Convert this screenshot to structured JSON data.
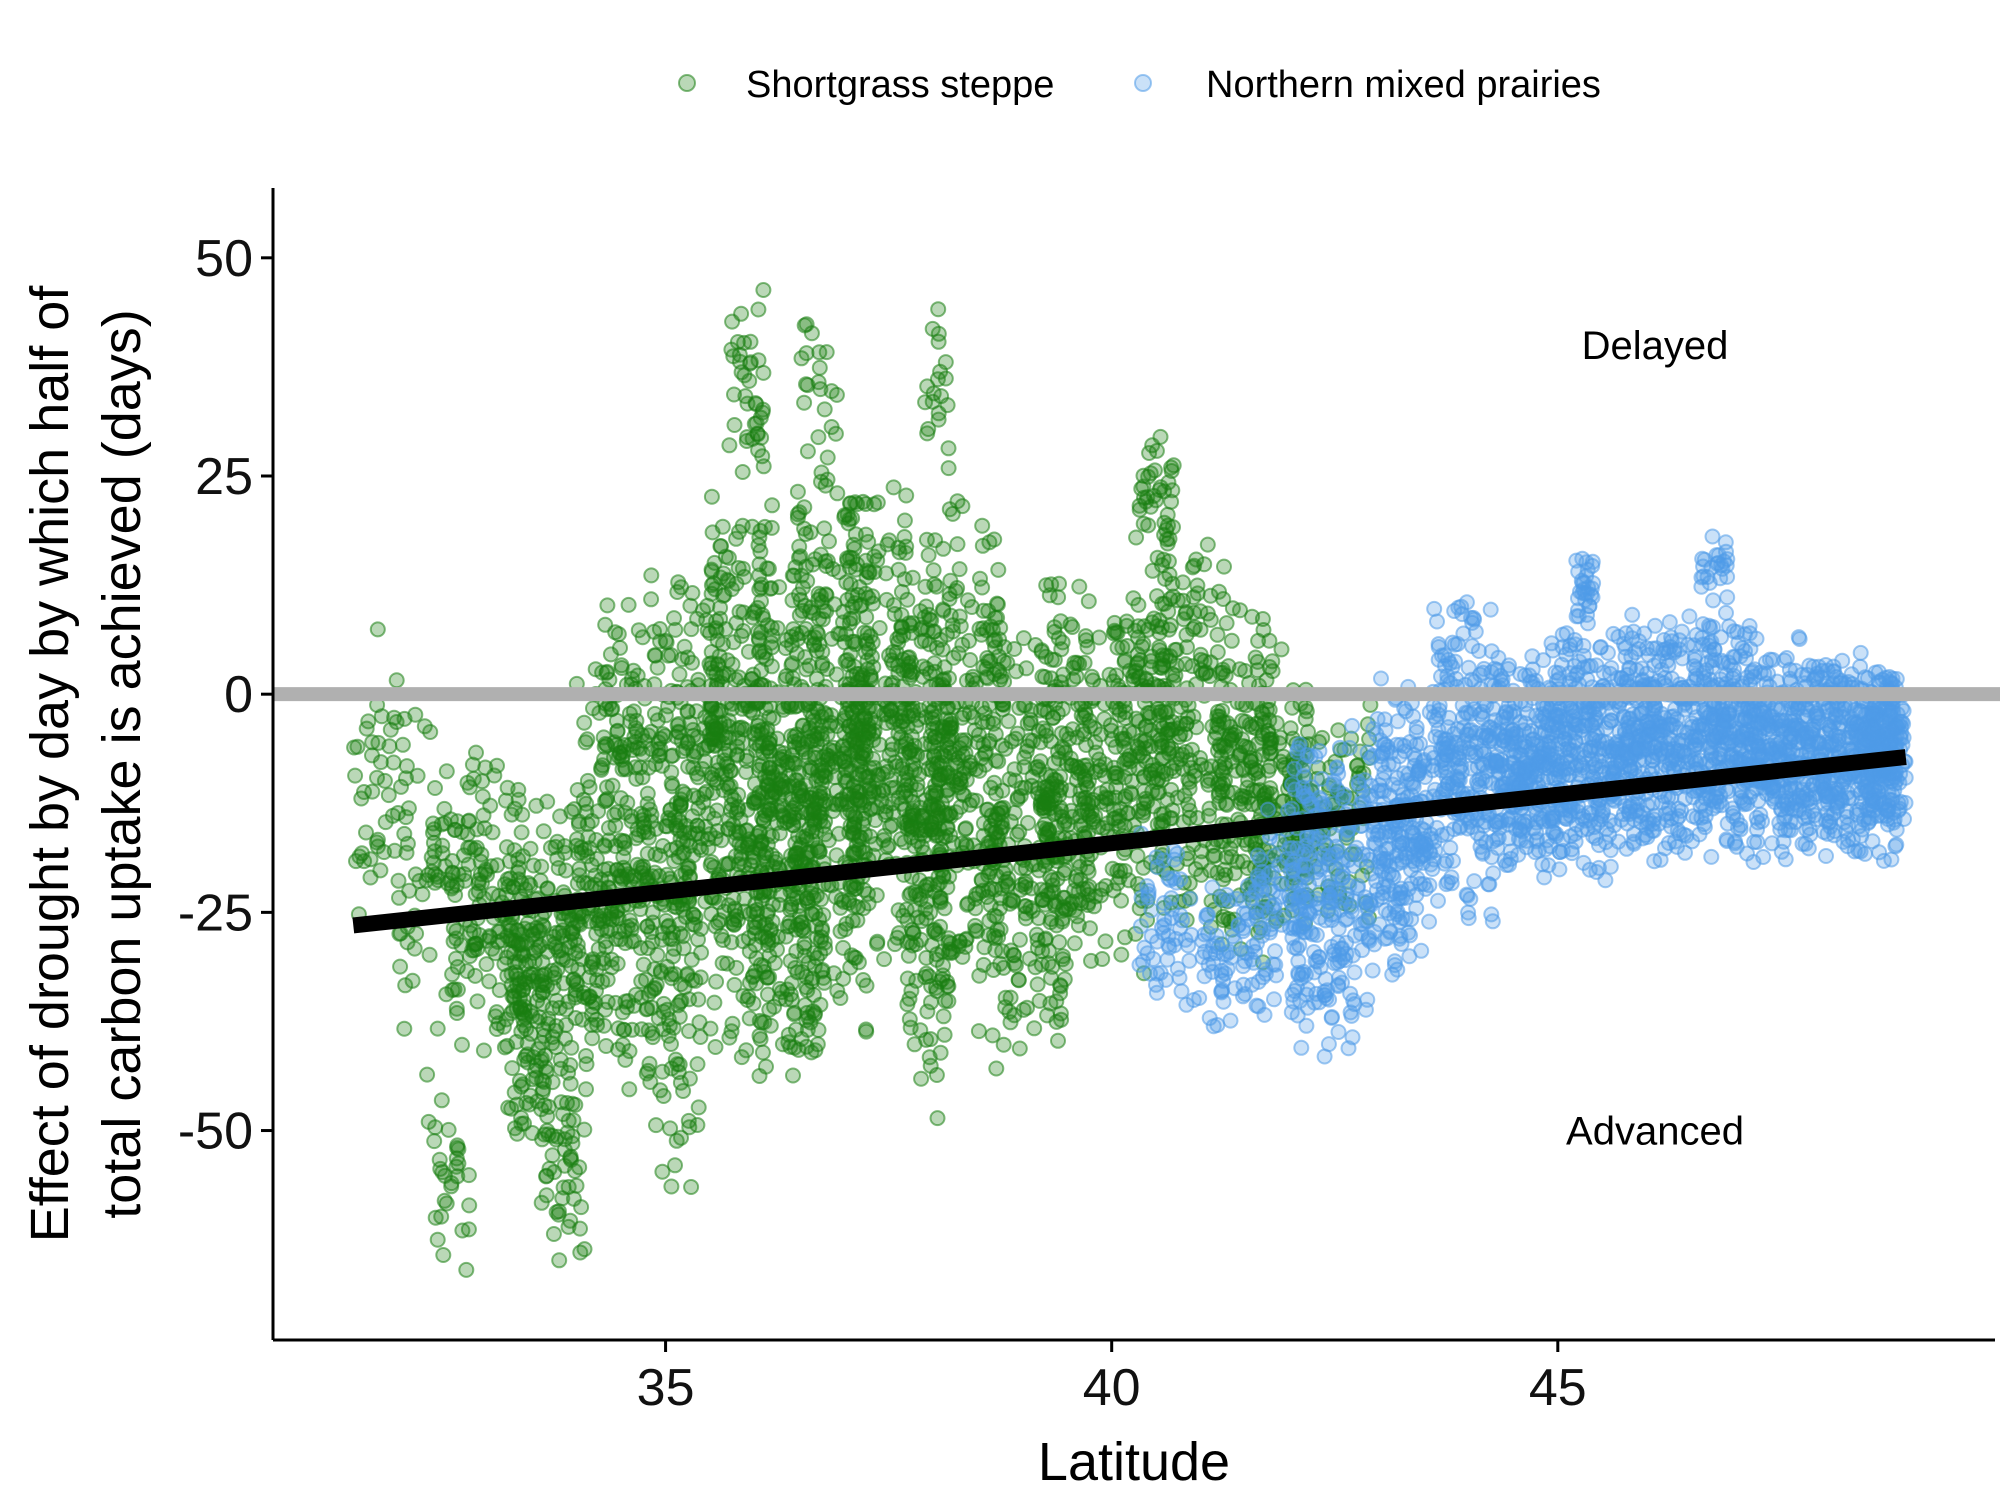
{
  "chart_data": {
    "type": "scatter",
    "xlabel": "Latitude",
    "ylabel": [
      "Effect of drought by day by which half of",
      "total carbon uptake is achieved (days)"
    ],
    "xlim": [
      30.6,
      49.9
    ],
    "ylim": [
      -74,
      58
    ],
    "xticks": [
      35,
      40,
      45
    ],
    "yticks": [
      50,
      25,
      0,
      -25,
      -50
    ],
    "grid": false,
    "legend_position": "top",
    "reference_line": {
      "y": 0,
      "color": "#b0b0b0"
    },
    "regression_line": {
      "x": [
        31.5,
        48.9
      ],
      "y": [
        -26.5,
        -7.2
      ],
      "color": "#000000"
    },
    "annotations": [
      {
        "text": "Delayed",
        "x": 46.0,
        "y": 40
      },
      {
        "text": "Advanced",
        "x": 46.0,
        "y": -50
      }
    ],
    "series": [
      {
        "name": "Shortgrass steppe",
        "color": "#1a7f12",
        "bands": [
          [
            31.5,
            32.0,
            -30,
            8,
            40
          ],
          [
            32.0,
            32.6,
            -40,
            0,
            60
          ],
          [
            32.3,
            32.8,
            -68,
            -40,
            30
          ],
          [
            32.6,
            33.4,
            -45,
            -5,
            150
          ],
          [
            33.2,
            34.0,
            -55,
            -10,
            250
          ],
          [
            33.6,
            34.1,
            -67,
            -45,
            40
          ],
          [
            34.0,
            34.8,
            -50,
            5,
            250
          ],
          [
            34.3,
            35.0,
            -20,
            16,
            80
          ],
          [
            34.8,
            35.4,
            -58,
            0,
            150
          ],
          [
            35.0,
            35.6,
            -30,
            15,
            150
          ],
          [
            35.5,
            36.2,
            -45,
            25,
            350
          ],
          [
            35.7,
            36.1,
            20,
            52,
            40
          ],
          [
            36.0,
            36.8,
            -48,
            20,
            350
          ],
          [
            36.4,
            37.3,
            -40,
            28,
            350
          ],
          [
            36.5,
            37.0,
            25,
            44,
            20
          ],
          [
            37.0,
            37.8,
            -35,
            26,
            300
          ],
          [
            37.7,
            38.2,
            -50,
            20,
            250
          ],
          [
            37.9,
            38.2,
            25,
            45,
            20
          ],
          [
            38.0,
            38.8,
            -40,
            25,
            250
          ],
          [
            38.6,
            39.5,
            -45,
            12,
            250
          ],
          [
            39.2,
            39.8,
            -40,
            15,
            150
          ],
          [
            39.6,
            40.4,
            -35,
            12,
            150
          ],
          [
            40.0,
            40.7,
            -25,
            20,
            150
          ],
          [
            40.3,
            40.7,
            15,
            32,
            40
          ],
          [
            40.5,
            41.3,
            -30,
            19,
            200
          ],
          [
            41.2,
            41.8,
            -33,
            12,
            150
          ],
          [
            41.6,
            42.2,
            -28,
            7,
            120
          ],
          [
            42.0,
            42.9,
            -28,
            0,
            120
          ]
        ]
      },
      {
        "name": "Northern mixed prairies",
        "color": "#4f9be8",
        "bands": [
          [
            40.3,
            41.0,
            -38,
            -15,
            60
          ],
          [
            41.0,
            41.8,
            -40,
            -20,
            80
          ],
          [
            41.6,
            42.2,
            -38,
            -10,
            70
          ],
          [
            42.0,
            42.9,
            -42,
            0,
            250
          ],
          [
            42.9,
            43.6,
            -33,
            3,
            250
          ],
          [
            43.6,
            44.3,
            -28,
            13,
            250
          ],
          [
            44.3,
            44.9,
            -22,
            5,
            250
          ],
          [
            44.9,
            45.6,
            -22,
            8,
            300
          ],
          [
            45.2,
            45.4,
            6,
            18,
            30
          ],
          [
            45.6,
            46.4,
            -20,
            10,
            350
          ],
          [
            46.4,
            47.2,
            -20,
            10,
            350
          ],
          [
            46.6,
            46.9,
            10,
            19,
            25
          ],
          [
            47.2,
            48.0,
            -20,
            7,
            350
          ],
          [
            48.0,
            48.8,
            -20,
            6,
            350
          ],
          [
            48.4,
            48.9,
            -15,
            3,
            150
          ]
        ]
      }
    ]
  }
}
